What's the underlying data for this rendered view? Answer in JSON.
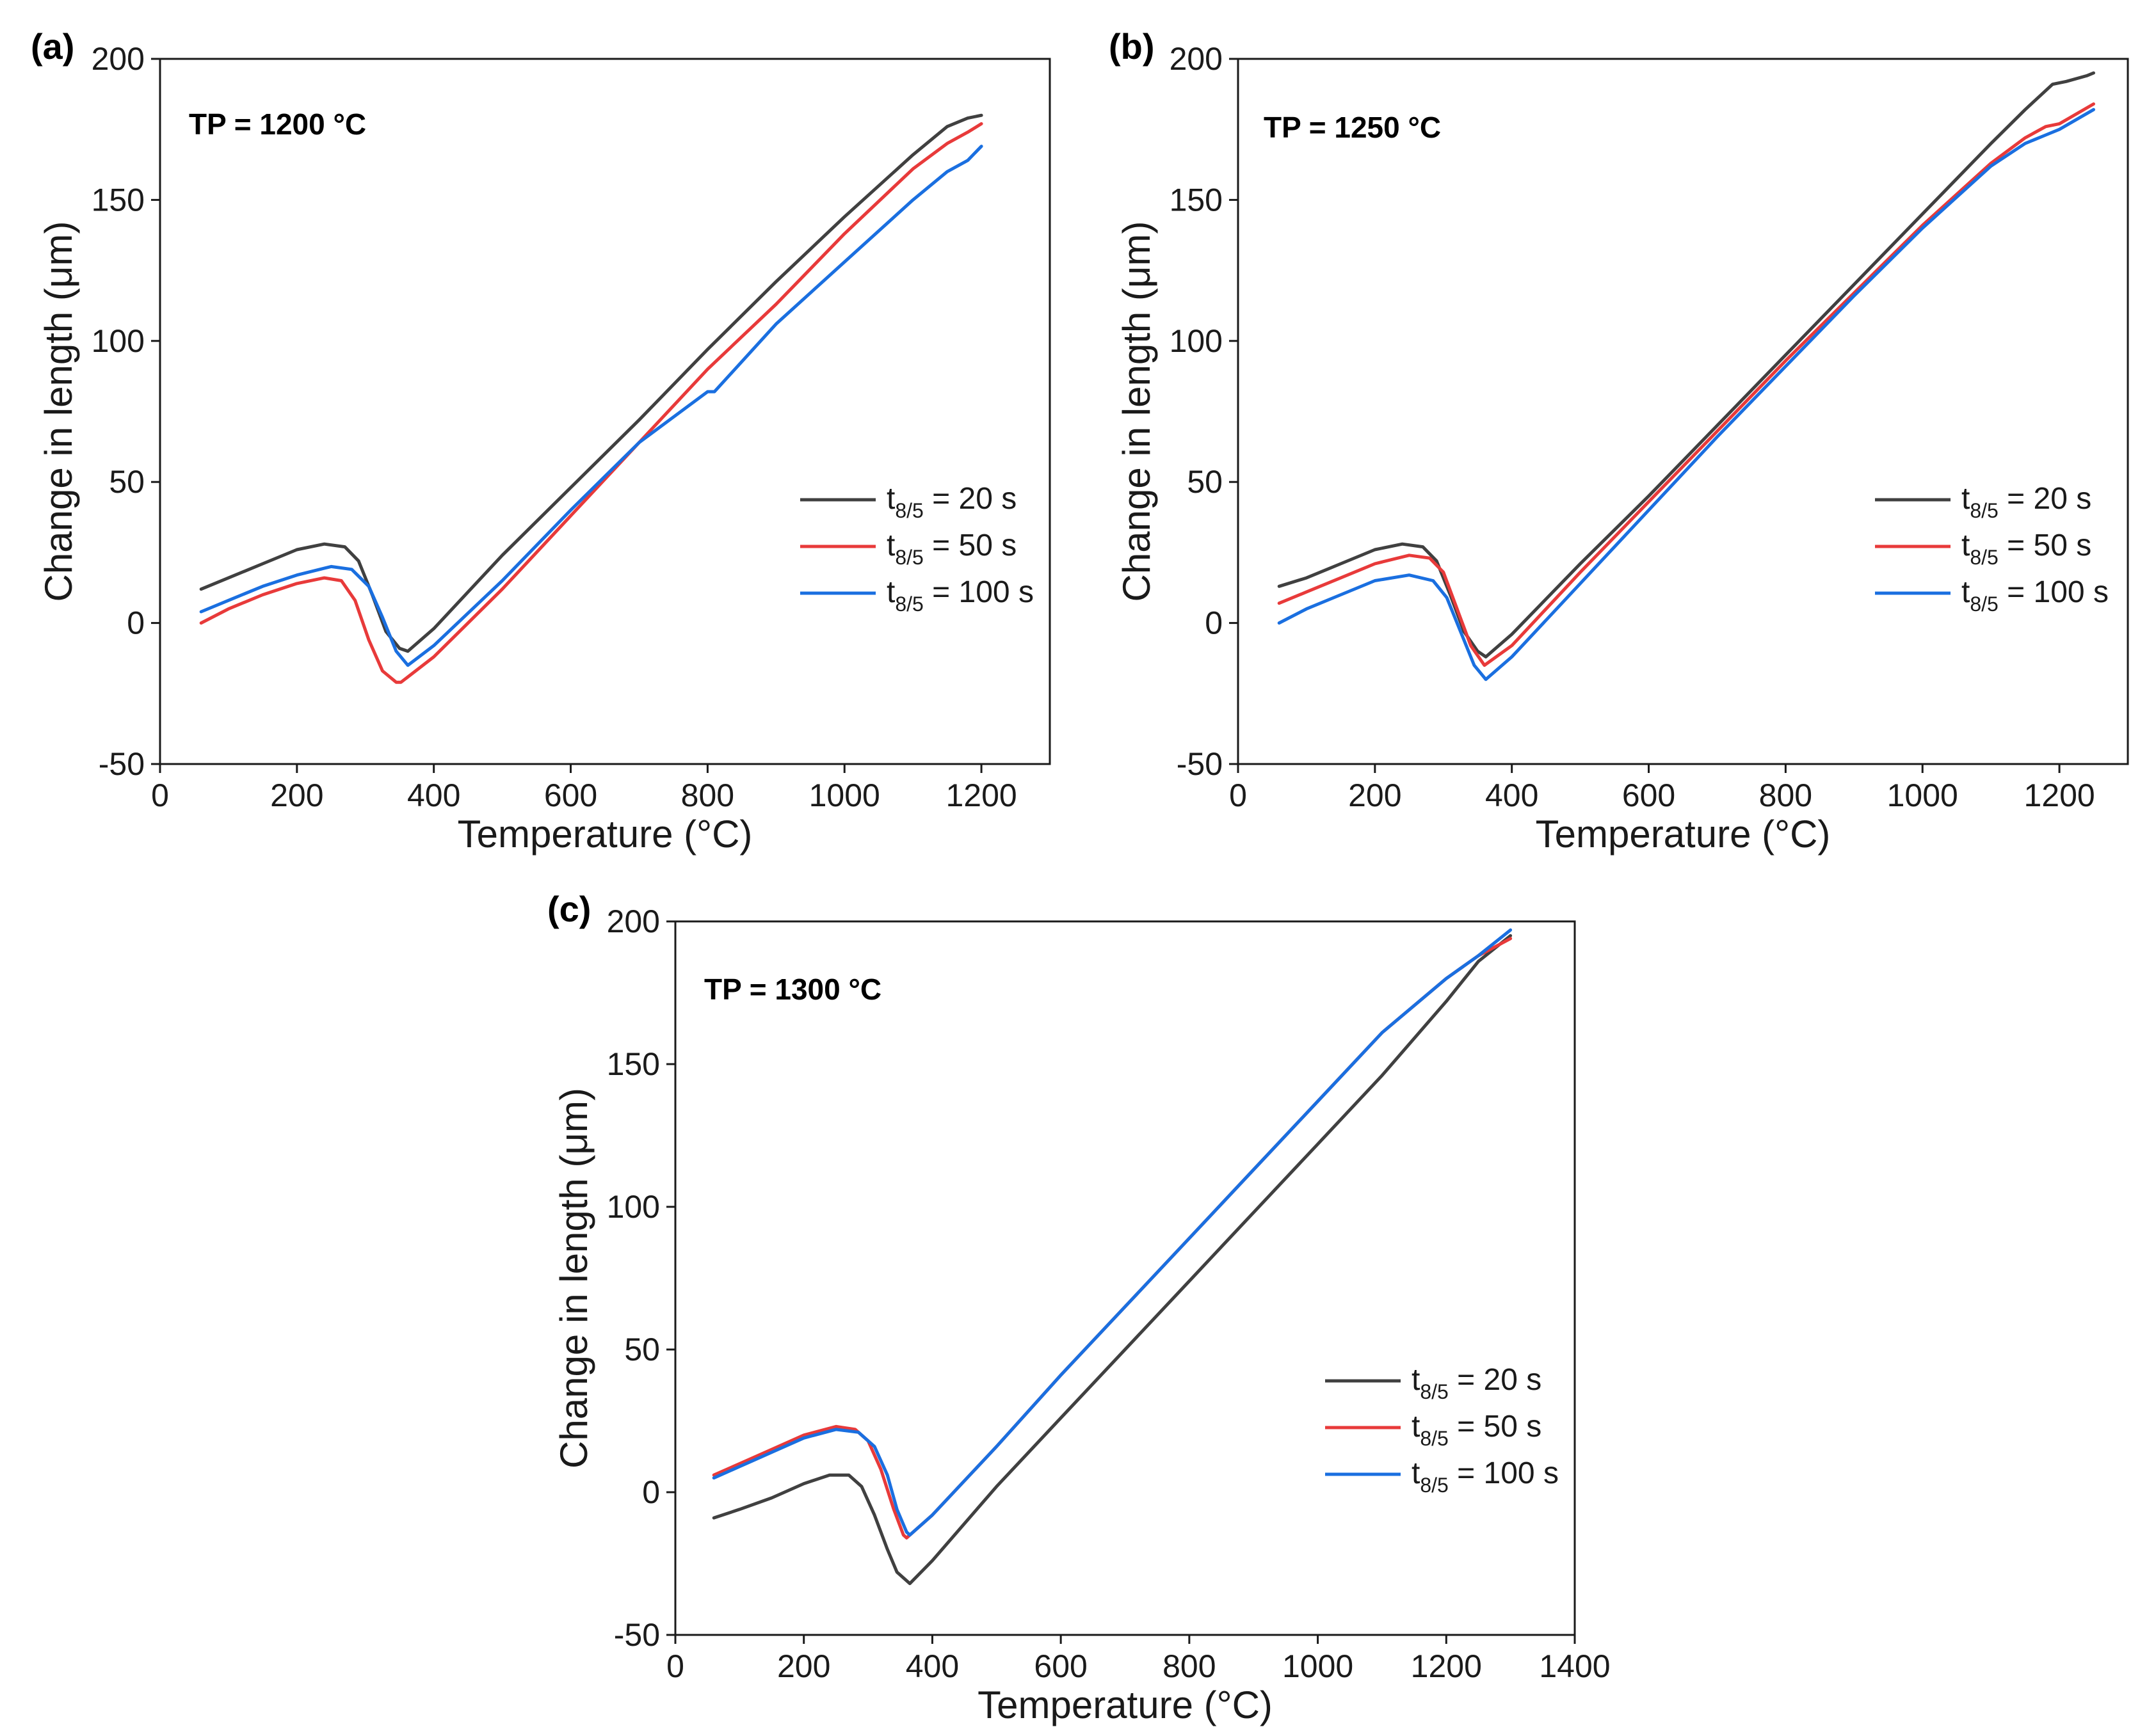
{
  "chart_data": [
    {
      "type": "line",
      "panel_label": "(a)",
      "annotation": "TP = 1200 °C",
      "xlabel": "Temperature (°C)",
      "ylabel": "Change in length (μm)",
      "xlim": [
        0,
        1300
      ],
      "ylim": [
        -50,
        200
      ],
      "xticks": [
        0,
        200,
        400,
        600,
        800,
        1000,
        1200
      ],
      "yticks": [
        -50,
        0,
        50,
        100,
        150,
        200
      ],
      "legend": "right-middle",
      "series": [
        {
          "name": "t8/5 = 20 s",
          "name_main": "t",
          "name_sub": "8/5",
          "name_rest": " = 20 s",
          "color": "#404040",
          "x": [
            60,
            100,
            150,
            200,
            240,
            270,
            290,
            310,
            330,
            350,
            362,
            400,
            500,
            600,
            700,
            800,
            900,
            1000,
            1100,
            1150,
            1180,
            1200
          ],
          "y": [
            12,
            16,
            21,
            26,
            28,
            27,
            22,
            10,
            -3,
            -9,
            -10,
            -2,
            24,
            48,
            72,
            97,
            121,
            144,
            166,
            176,
            179,
            180
          ]
        },
        {
          "name": "t8/5 = 50 s",
          "name_main": "t",
          "name_sub": "8/5",
          "name_rest": " = 50 s",
          "color": "#e83a3a",
          "x": [
            60,
            100,
            150,
            200,
            240,
            265,
            285,
            305,
            325,
            345,
            352,
            400,
            500,
            600,
            700,
            800,
            900,
            1000,
            1100,
            1150,
            1180,
            1200
          ],
          "y": [
            0,
            5,
            10,
            14,
            16,
            15,
            8,
            -6,
            -17,
            -21,
            -21,
            -12,
            12,
            38,
            64,
            90,
            113,
            138,
            161,
            170,
            174,
            177
          ]
        },
        {
          "name": "t8/5 = 100 s",
          "name_main": "t",
          "name_sub": "8/5",
          "name_rest": " = 100 s",
          "color": "#1a6fe0",
          "x": [
            60,
            100,
            150,
            200,
            250,
            280,
            305,
            325,
            345,
            362,
            400,
            500,
            600,
            700,
            800,
            810,
            900,
            1000,
            1100,
            1150,
            1180,
            1200
          ],
          "y": [
            4,
            8,
            13,
            17,
            20,
            19,
            13,
            2,
            -10,
            -15,
            -8,
            15,
            40,
            64,
            82,
            82,
            106,
            128,
            150,
            160,
            164,
            169
          ]
        }
      ]
    },
    {
      "type": "line",
      "panel_label": "(b)",
      "annotation": "TP = 1250 °C",
      "xlabel": "Temperature (°C)",
      "ylabel": "Change in length (μm)",
      "xlim": [
        0,
        1300
      ],
      "ylim": [
        -50,
        200
      ],
      "xticks": [
        0,
        200,
        400,
        600,
        800,
        1000,
        1200
      ],
      "yticks": [
        -50,
        0,
        50,
        100,
        150,
        200
      ],
      "legend": "right-middle",
      "series": [
        {
          "name": "t8/5 = 20 s",
          "name_main": "t",
          "name_sub": "8/5",
          "name_rest": " = 20 s",
          "color": "#404040",
          "x": [
            60,
            100,
            150,
            200,
            240,
            270,
            290,
            310,
            330,
            350,
            362,
            400,
            500,
            600,
            700,
            800,
            900,
            1000,
            1100,
            1150,
            1190,
            1210,
            1240,
            1250
          ],
          "y": [
            13,
            16,
            21,
            26,
            28,
            27,
            22,
            10,
            -3,
            -10,
            -12,
            -4,
            21,
            45,
            70,
            95,
            120,
            145,
            170,
            182,
            191,
            192,
            194,
            195
          ]
        },
        {
          "name": "t8/5 = 50 s",
          "name_main": "t",
          "name_sub": "8/5",
          "name_rest": " = 50 s",
          "color": "#e83a3a",
          "x": [
            60,
            100,
            150,
            200,
            250,
            280,
            300,
            320,
            340,
            360,
            400,
            500,
            600,
            700,
            800,
            900,
            1000,
            1100,
            1150,
            1180,
            1200,
            1250
          ],
          "y": [
            7,
            11,
            16,
            21,
            24,
            23,
            18,
            5,
            -8,
            -15,
            -8,
            18,
            43,
            68,
            93,
            117,
            141,
            163,
            172,
            176,
            177,
            184
          ]
        },
        {
          "name": "t8/5 = 100 s",
          "name_main": "t",
          "name_sub": "8/5",
          "name_rest": " = 100 s",
          "color": "#1a6fe0",
          "x": [
            60,
            100,
            150,
            200,
            250,
            285,
            305,
            325,
            345,
            362,
            400,
            500,
            600,
            700,
            800,
            900,
            1000,
            1100,
            1150,
            1180,
            1200,
            1250
          ],
          "y": [
            0,
            5,
            10,
            15,
            17,
            15,
            9,
            -3,
            -15,
            -20,
            -12,
            14,
            40,
            66,
            91,
            116,
            140,
            162,
            170,
            173,
            175,
            182
          ]
        }
      ]
    },
    {
      "type": "line",
      "panel_label": "(c)",
      "annotation": "TP = 1300 °C",
      "xlabel": "Temperature (°C)",
      "ylabel": "Change in length (μm)",
      "xlim": [
        0,
        1400
      ],
      "ylim": [
        -50,
        200
      ],
      "xticks": [
        0,
        200,
        400,
        600,
        800,
        1000,
        1200,
        1400
      ],
      "yticks": [
        -50,
        0,
        50,
        100,
        150,
        200
      ],
      "legend": "right-middle",
      "series": [
        {
          "name": "t8/5 = 20 s",
          "name_main": "t",
          "name_sub": "8/5",
          "name_rest": " = 20 s",
          "color": "#404040",
          "x": [
            60,
            100,
            150,
            200,
            240,
            270,
            290,
            310,
            330,
            345,
            365,
            400,
            500,
            600,
            700,
            800,
            900,
            1000,
            1100,
            1200,
            1250,
            1300
          ],
          "y": [
            -9,
            -6,
            -2,
            3,
            6,
            6,
            2,
            -8,
            -20,
            -28,
            -32,
            -24,
            2,
            26,
            50,
            74,
            98,
            122,
            146,
            172,
            186,
            195
          ]
        },
        {
          "name": "t8/5 = 50 s",
          "name_main": "t",
          "name_sub": "8/5",
          "name_rest": " = 50 s",
          "color": "#e83a3a",
          "x": [
            60,
            100,
            150,
            200,
            250,
            280,
            300,
            320,
            340,
            355,
            360,
            400,
            500,
            600,
            700,
            800,
            900,
            1000,
            1100,
            1200,
            1250,
            1300
          ],
          "y": [
            6,
            10,
            15,
            20,
            23,
            22,
            18,
            8,
            -6,
            -15,
            -16,
            -8,
            16,
            41,
            65,
            89,
            113,
            137,
            161,
            180,
            188,
            194
          ]
        },
        {
          "name": "t8/5 = 100 s",
          "name_main": "t",
          "name_sub": "8/5",
          "name_rest": " = 100 s",
          "color": "#1a6fe0",
          "x": [
            60,
            100,
            150,
            200,
            250,
            285,
            310,
            330,
            345,
            360,
            365,
            400,
            500,
            600,
            700,
            800,
            900,
            1000,
            1100,
            1200,
            1250,
            1300
          ],
          "y": [
            5,
            9,
            14,
            19,
            22,
            21,
            16,
            6,
            -6,
            -14,
            -15,
            -8,
            16,
            41,
            65,
            89,
            113,
            137,
            161,
            180,
            188,
            197
          ]
        }
      ]
    }
  ]
}
